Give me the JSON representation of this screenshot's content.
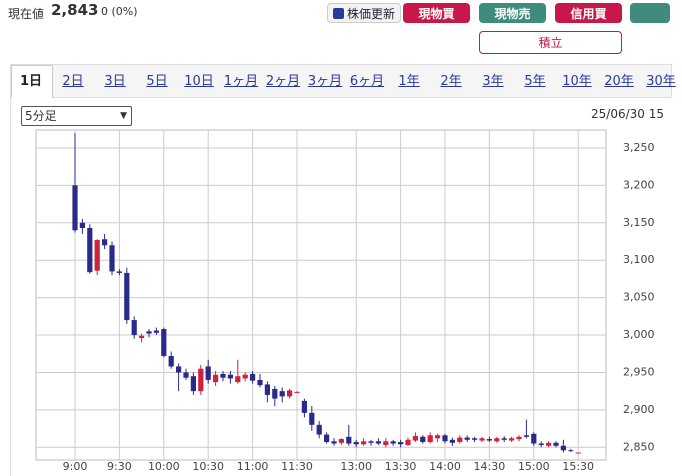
{
  "header": {
    "label": "現在値",
    "price": "2,843",
    "change": "0 (0%)"
  },
  "buttons": [
    "株価更新",
    "現物買",
    "現物売",
    "信用買",
    "積立"
  ],
  "tabs": [
    "1日",
    "2日",
    "3日",
    "5日",
    "10日",
    "1ヶ月",
    "2ヶ月",
    "3ヶ月",
    "6ヶ月",
    "1年",
    "2年",
    "3年",
    "5年",
    "10年",
    "20年",
    "30年"
  ],
  "select": "5分足",
  "timestamp": "25/06/30 15",
  "chart_data": {
    "type": "candlestick",
    "up_color": "#d0213e",
    "down_color": "#2a2a8c",
    "grid": true,
    "categories": [
      "9:00",
      null,
      null,
      null,
      null,
      null,
      "9:30",
      null,
      null,
      null,
      null,
      null,
      "10:00",
      null,
      null,
      null,
      null,
      null,
      "10:30",
      null,
      null,
      null,
      null,
      null,
      "11:00",
      null,
      null,
      null,
      null,
      null,
      "11:30",
      null,
      null,
      null,
      null,
      null,
      null,
      null,
      "13:00",
      null,
      null,
      null,
      null,
      null,
      "13:30",
      null,
      null,
      null,
      null,
      null,
      "14:00",
      null,
      null,
      null,
      null,
      null,
      "14:30",
      null,
      null,
      null,
      null,
      null,
      "15:00",
      null,
      null,
      null,
      null,
      null,
      "15:30"
    ],
    "open": [
      3200,
      3150,
      3143,
      3086,
      3128,
      3120,
      3085,
      3083,
      3020,
      2996,
      3005,
      3006,
      3008,
      2972,
      2958,
      2950,
      2945,
      2925,
      2958,
      2937,
      2948,
      2947,
      2937,
      2942,
      2948,
      2940,
      2934,
      2928,
      2925,
      2918,
      2924,
      2912,
      2896,
      2880,
      2867,
      2858,
      2856,
      2864,
      2857,
      2854,
      2858,
      2858,
      2853,
      2858,
      2857,
      2853,
      2859,
      2864,
      2857,
      2862,
      2866,
      2860,
      2857,
      2863,
      2862,
      2859,
      2861,
      2858,
      2862,
      2859,
      2861,
      2866,
      2868,
      2855,
      2852,
      2856,
      2852,
      2846,
      2843
    ],
    "high": [
      3270,
      3155,
      3148,
      3128,
      3135,
      3125,
      3088,
      3090,
      3025,
      3002,
      3008,
      3010,
      3010,
      2978,
      2962,
      2955,
      2950,
      2960,
      2967,
      2952,
      2952,
      2952,
      2967,
      2950,
      2952,
      2948,
      2938,
      2932,
      2930,
      2928,
      2925,
      2915,
      2905,
      2885,
      2870,
      2862,
      2862,
      2880,
      2860,
      2862,
      2860,
      2862,
      2862,
      2860,
      2860,
      2863,
      2870,
      2866,
      2870,
      2868,
      2868,
      2863,
      2866,
      2866,
      2864,
      2864,
      2864,
      2864,
      2865,
      2864,
      2866,
      2887,
      2870,
      2858,
      2858,
      2858,
      2860,
      2848,
      2843
    ],
    "low": [
      3137,
      3135,
      3082,
      3080,
      3115,
      3080,
      3080,
      3015,
      2995,
      2990,
      2997,
      3000,
      2970,
      2955,
      2925,
      2940,
      2920,
      2920,
      2935,
      2932,
      2938,
      2935,
      2935,
      2938,
      2935,
      2930,
      2910,
      2905,
      2910,
      2915,
      2923,
      2890,
      2872,
      2862,
      2855,
      2852,
      2853,
      2852,
      2850,
      2852,
      2852,
      2853,
      2850,
      2852,
      2850,
      2852,
      2857,
      2855,
      2855,
      2857,
      2855,
      2852,
      2855,
      2857,
      2857,
      2857,
      2857,
      2856,
      2857,
      2857,
      2858,
      2862,
      2852,
      2850,
      2850,
      2850,
      2843,
      2844,
      2843
    ],
    "close": [
      3140,
      3143,
      3084,
      3127,
      3120,
      3085,
      3083,
      3020,
      3000,
      2999,
      3002,
      3003,
      2972,
      2958,
      2950,
      2943,
      2925,
      2955,
      2940,
      2947,
      2943,
      2942,
      2945,
      2947,
      2939,
      2933,
      2920,
      2915,
      2918,
      2926,
      2924,
      2896,
      2880,
      2867,
      2857,
      2855,
      2861,
      2855,
      2854,
      2858,
      2856,
      2855,
      2858,
      2855,
      2854,
      2860,
      2865,
      2857,
      2866,
      2866,
      2858,
      2856,
      2863,
      2860,
      2860,
      2862,
      2859,
      2862,
      2860,
      2862,
      2864,
      2864,
      2855,
      2853,
      2856,
      2852,
      2846,
      2845,
      2843
    ],
    "ylim": [
      2833,
      3274
    ],
    "yticks": [
      {
        "value": 2850,
        "label": "2,850"
      },
      {
        "value": 2900,
        "label": "2,900"
      },
      {
        "value": 2950,
        "label": "2,950"
      },
      {
        "value": 3000,
        "label": "3,000"
      },
      {
        "value": 3050,
        "label": "3,050"
      },
      {
        "value": 3100,
        "label": "3,100"
      },
      {
        "value": 3150,
        "label": "3,150"
      },
      {
        "value": 3200,
        "label": "3,200"
      },
      {
        "value": 3250,
        "label": "3,250"
      }
    ]
  }
}
